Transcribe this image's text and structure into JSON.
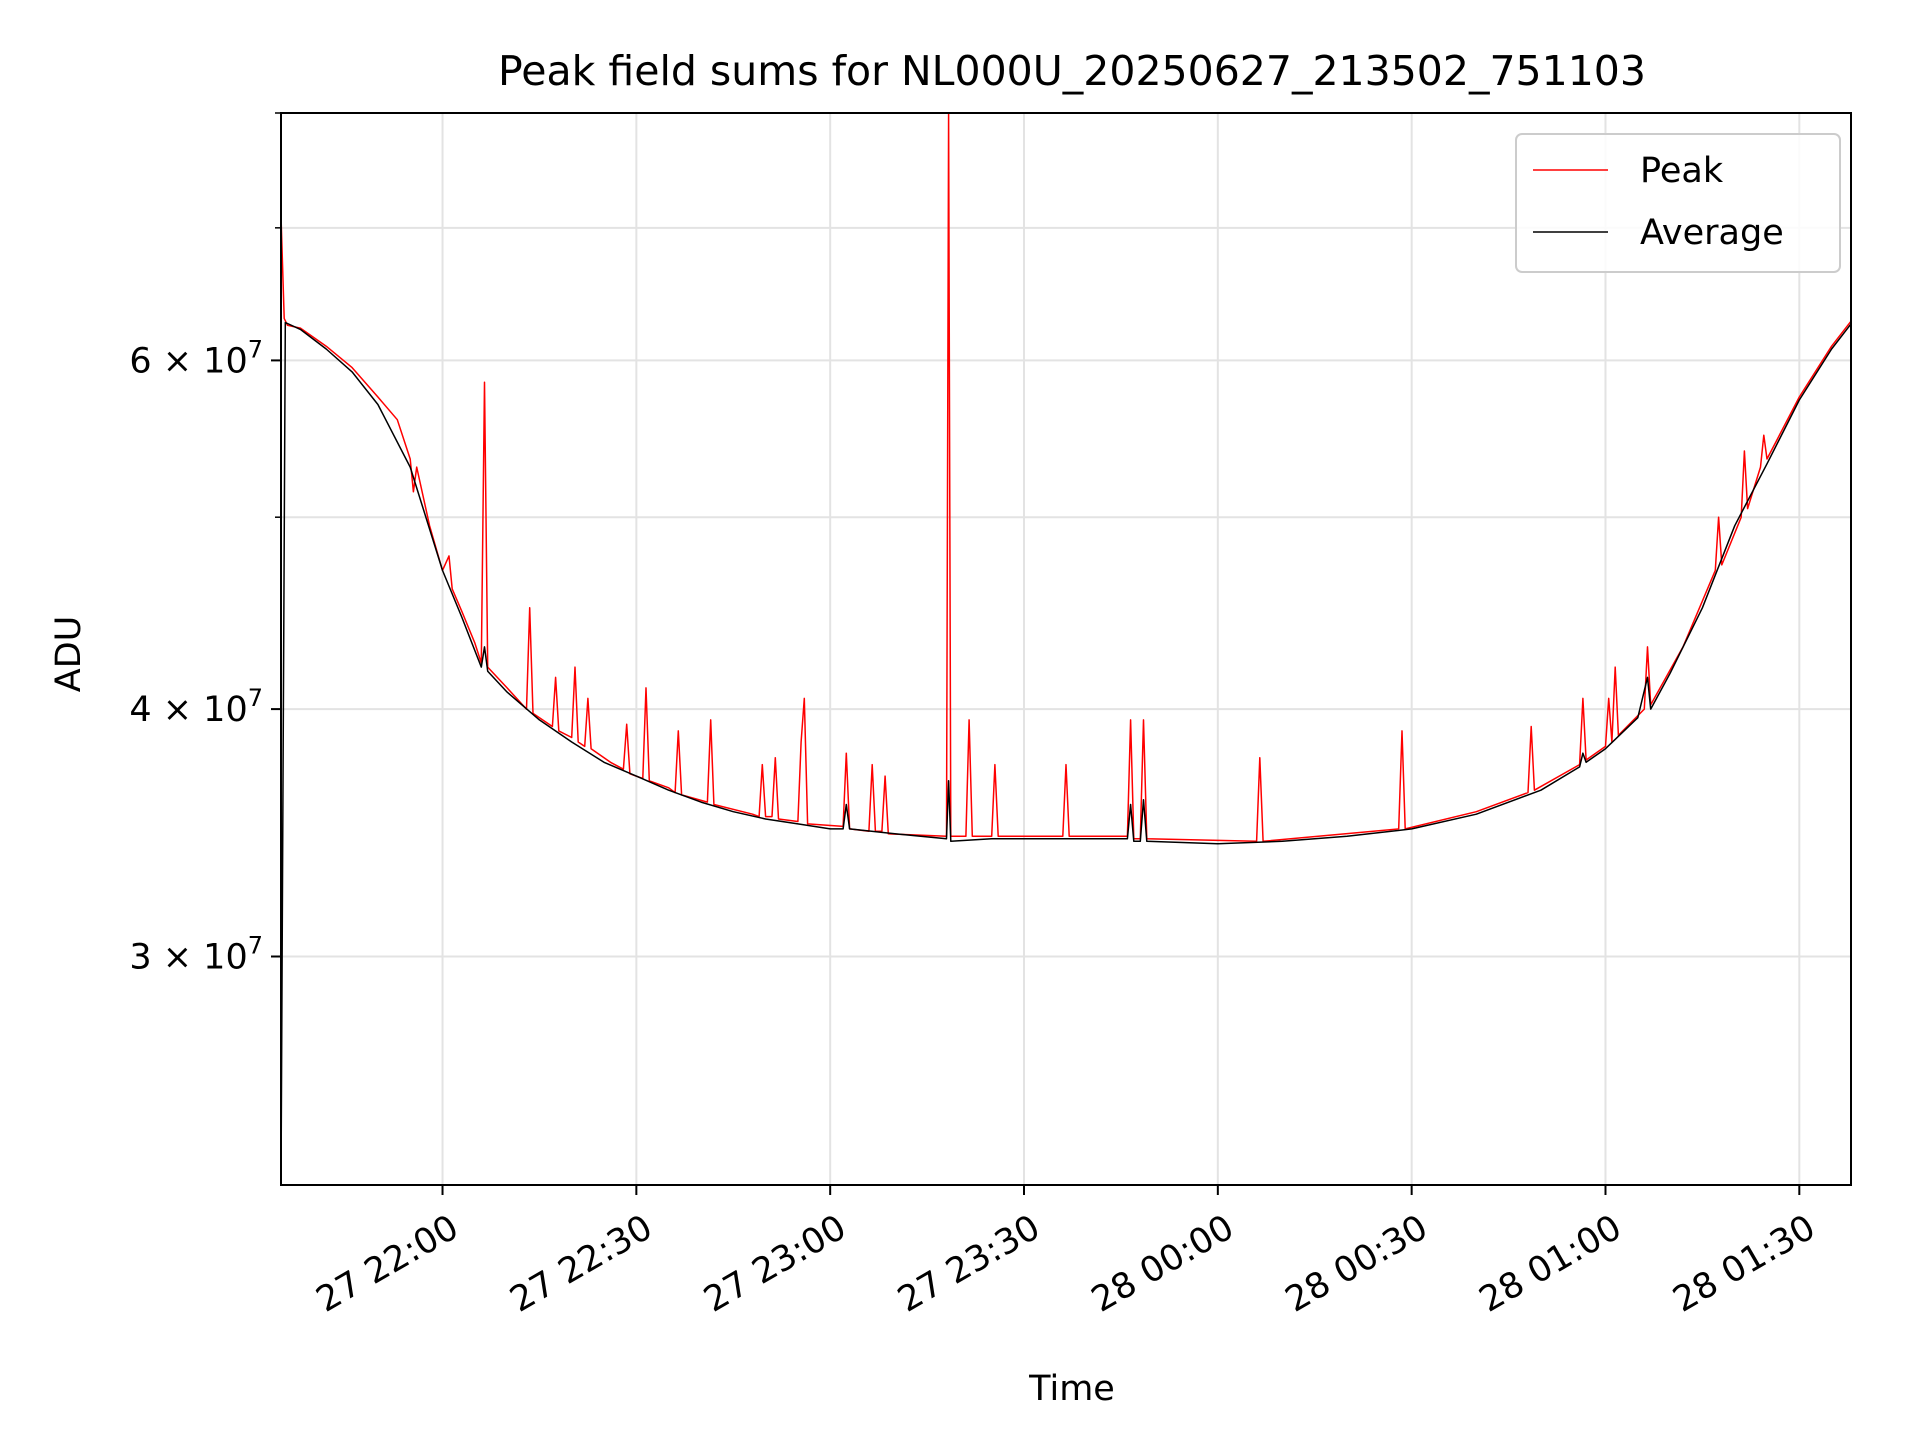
{
  "chart_data": {
    "type": "line",
    "title": "Peak field sums for NL000U_20250627_213502_751103",
    "xlabel": "Time",
    "ylabel": "ADU",
    "y_scale": "log",
    "ylim": [
      23000000,
      80000000
    ],
    "xlim": [
      "2025-06-27 21:35",
      "2025-06-28 01:38"
    ],
    "grid": true,
    "legend_position": "upper right",
    "x_ticks": [
      {
        "t": "2025-06-27 22:00",
        "label": "27 22:00"
      },
      {
        "t": "2025-06-27 22:30",
        "label": "27 22:30"
      },
      {
        "t": "2025-06-27 23:00",
        "label": "27 23:00"
      },
      {
        "t": "2025-06-27 23:30",
        "label": "27 23:30"
      },
      {
        "t": "2025-06-28 00:00",
        "label": "28 00:00"
      },
      {
        "t": "2025-06-28 00:30",
        "label": "28 00:30"
      },
      {
        "t": "2025-06-28 01:00",
        "label": "28 01:00"
      },
      {
        "t": "2025-06-28 01:30",
        "label": "28 01:30"
      }
    ],
    "y_ticks": [
      {
        "value": 30000000,
        "mantissa": "3",
        "base": "10",
        "exp": "7"
      },
      {
        "value": 40000000,
        "mantissa": "4",
        "base": "10",
        "exp": "7"
      },
      {
        "value": 60000000,
        "mantissa": "6",
        "base": "10",
        "exp": "7"
      }
    ],
    "y_minor_ticks": [
      50000000,
      70000000,
      80000000,
      90000000
    ],
    "series": [
      {
        "name": "Peak",
        "color": "#ff0000",
        "points": [
          [
            "2025-06-27 21:35",
            71000000
          ],
          [
            "2025-06-27 21:35:30",
            63000000
          ],
          [
            "2025-06-27 21:36",
            62500000
          ],
          [
            "2025-06-27 21:38",
            62300000
          ],
          [
            "2025-06-27 21:42",
            61000000
          ],
          [
            "2025-06-27 21:46",
            59500000
          ],
          [
            "2025-06-27 21:50",
            57500000
          ],
          [
            "2025-06-27 21:53",
            56000000
          ],
          [
            "2025-06-27 21:55",
            53500000
          ],
          [
            "2025-06-27 21:55:30",
            51500000
          ],
          [
            "2025-06-27 21:56",
            53000000
          ],
          [
            "2025-06-27 21:58",
            49500000
          ],
          [
            "2025-06-27 22:00",
            47000000
          ],
          [
            "2025-06-27 22:01",
            47800000
          ],
          [
            "2025-06-27 22:01:30",
            46000000
          ],
          [
            "2025-06-27 22:03",
            44800000
          ],
          [
            "2025-06-27 22:05",
            43200000
          ],
          [
            "2025-06-27 22:06",
            42200000
          ],
          [
            "2025-06-27 22:06:30",
            58500000
          ],
          [
            "2025-06-27 22:07",
            42000000
          ],
          [
            "2025-06-27 22:10",
            41000000
          ],
          [
            "2025-06-27 22:13",
            40000000
          ],
          [
            "2025-06-27 22:13:30",
            45000000
          ],
          [
            "2025-06-27 22:14",
            39800000
          ],
          [
            "2025-06-27 22:17",
            39200000
          ],
          [
            "2025-06-27 22:17:30",
            41500000
          ],
          [
            "2025-06-27 22:18",
            39000000
          ],
          [
            "2025-06-27 22:20",
            38700000
          ],
          [
            "2025-06-27 22:20:30",
            42000000
          ],
          [
            "2025-06-27 22:21",
            38500000
          ],
          [
            "2025-06-27 22:22",
            38300000
          ],
          [
            "2025-06-27 22:22:30",
            40500000
          ],
          [
            "2025-06-27 22:23",
            38200000
          ],
          [
            "2025-06-27 22:26",
            37600000
          ],
          [
            "2025-06-27 22:28",
            37300000
          ],
          [
            "2025-06-27 22:28:30",
            39300000
          ],
          [
            "2025-06-27 22:29",
            37100000
          ],
          [
            "2025-06-27 22:31",
            36900000
          ],
          [
            "2025-06-27 22:31:30",
            41000000
          ],
          [
            "2025-06-27 22:32",
            36800000
          ],
          [
            "2025-06-27 22:35",
            36500000
          ],
          [
            "2025-06-27 22:36",
            36300000
          ],
          [
            "2025-06-27 22:36:30",
            39000000
          ],
          [
            "2025-06-27 22:37",
            36200000
          ],
          [
            "2025-06-27 22:41",
            35900000
          ],
          [
            "2025-06-27 22:41:30",
            39500000
          ],
          [
            "2025-06-27 22:42",
            35800000
          ],
          [
            "2025-06-27 22:48",
            35400000
          ],
          [
            "2025-06-27 22:49",
            35300000
          ],
          [
            "2025-06-27 22:49:30",
            37500000
          ],
          [
            "2025-06-27 22:50",
            35300000
          ],
          [
            "2025-06-27 22:51",
            35300000
          ],
          [
            "2025-06-27 22:51:30",
            37800000
          ],
          [
            "2025-06-27 22:52",
            35200000
          ],
          [
            "2025-06-27 22:55",
            35100000
          ],
          [
            "2025-06-27 22:55:30",
            38500000
          ],
          [
            "2025-06-27 22:56",
            40500000
          ],
          [
            "2025-06-27 22:56:30",
            35000000
          ],
          [
            "2025-06-27 23:02",
            34900000
          ],
          [
            "2025-06-27 23:02:30",
            38000000
          ],
          [
            "2025-06-27 23:03",
            34800000
          ],
          [
            "2025-06-27 23:06",
            34700000
          ],
          [
            "2025-06-27 23:06:30",
            37500000
          ],
          [
            "2025-06-27 23:07",
            34700000
          ],
          [
            "2025-06-27 23:08",
            34700000
          ],
          [
            "2025-06-27 23:08:30",
            37000000
          ],
          [
            "2025-06-27 23:09",
            34600000
          ],
          [
            "2025-06-27 23:18",
            34500000
          ],
          [
            "2025-06-27 23:18:20",
            80000000
          ],
          [
            "2025-06-27 23:18:40",
            34500000
          ],
          [
            "2025-06-27 23:21",
            34500000
          ],
          [
            "2025-06-27 23:21:30",
            39500000
          ],
          [
            "2025-06-27 23:22",
            34500000
          ],
          [
            "2025-06-27 23:25",
            34500000
          ],
          [
            "2025-06-27 23:25:30",
            37500000
          ],
          [
            "2025-06-27 23:26",
            34500000
          ],
          [
            "2025-06-27 23:36",
            34500000
          ],
          [
            "2025-06-27 23:36:30",
            37500000
          ],
          [
            "2025-06-27 23:37",
            34500000
          ],
          [
            "2025-06-27 23:46",
            34500000
          ],
          [
            "2025-06-27 23:46:30",
            39500000
          ],
          [
            "2025-06-27 23:47",
            34400000
          ],
          [
            "2025-06-27 23:48",
            34400000
          ],
          [
            "2025-06-27 23:48:30",
            39500000
          ],
          [
            "2025-06-27 23:49",
            34400000
          ],
          [
            "2025-06-28 00:06",
            34300000
          ],
          [
            "2025-06-28 00:06:30",
            37800000
          ],
          [
            "2025-06-28 00:07",
            34300000
          ],
          [
            "2025-06-28 00:28",
            34800000
          ],
          [
            "2025-06-28 00:28:30",
            39000000
          ],
          [
            "2025-06-28 00:29",
            34800000
          ],
          [
            "2025-06-28 00:40",
            35500000
          ],
          [
            "2025-06-28 00:48",
            36300000
          ],
          [
            "2025-06-28 00:48:30",
            39200000
          ],
          [
            "2025-06-28 00:49",
            36400000
          ],
          [
            "2025-06-28 00:56",
            37500000
          ],
          [
            "2025-06-28 00:56:30",
            40500000
          ],
          [
            "2025-06-28 00:57",
            37700000
          ],
          [
            "2025-06-28 01:00",
            38300000
          ],
          [
            "2025-06-28 01:00:30",
            40500000
          ],
          [
            "2025-06-28 01:01",
            38500000
          ],
          [
            "2025-06-28 01:01:30",
            42000000
          ],
          [
            "2025-06-28 01:02",
            38800000
          ],
          [
            "2025-06-28 01:06",
            40000000
          ],
          [
            "2025-06-28 01:06:30",
            43000000
          ],
          [
            "2025-06-28 01:07",
            40200000
          ],
          [
            "2025-06-28 01:12",
            43000000
          ],
          [
            "2025-06-28 01:17",
            47000000
          ],
          [
            "2025-06-28 01:17:30",
            50000000
          ],
          [
            "2025-06-28 01:18",
            47300000
          ],
          [
            "2025-06-28 01:21",
            50000000
          ],
          [
            "2025-06-28 01:21:30",
            54000000
          ],
          [
            "2025-06-28 01:22",
            50500000
          ],
          [
            "2025-06-28 01:24",
            53000000
          ],
          [
            "2025-06-28 01:24:30",
            55000000
          ],
          [
            "2025-06-28 01:25",
            53500000
          ],
          [
            "2025-06-28 01:30",
            57500000
          ],
          [
            "2025-06-28 01:35",
            61000000
          ],
          [
            "2025-06-28 01:38",
            62800000
          ]
        ]
      },
      {
        "name": "Average",
        "color": "#000000",
        "points": [
          [
            "2025-06-27 21:35",
            23000000
          ],
          [
            "2025-06-27 21:35:40",
            62700000
          ],
          [
            "2025-06-27 21:38",
            62200000
          ],
          [
            "2025-06-27 21:42",
            60800000
          ],
          [
            "2025-06-27 21:46",
            59200000
          ],
          [
            "2025-06-27 21:50",
            57000000
          ],
          [
            "2025-06-27 21:55",
            53000000
          ],
          [
            "2025-06-27 22:00",
            47000000
          ],
          [
            "2025-06-27 22:03",
            44500000
          ],
          [
            "2025-06-27 22:06",
            42000000
          ],
          [
            "2025-06-27 22:06:30",
            43000000
          ],
          [
            "2025-06-27 22:07",
            41800000
          ],
          [
            "2025-06-27 22:10",
            40800000
          ],
          [
            "2025-06-27 22:15",
            39500000
          ],
          [
            "2025-06-27 22:20",
            38500000
          ],
          [
            "2025-06-27 22:25",
            37600000
          ],
          [
            "2025-06-27 22:30",
            37000000
          ],
          [
            "2025-06-27 22:35",
            36400000
          ],
          [
            "2025-06-27 22:40",
            35900000
          ],
          [
            "2025-06-27 22:45",
            35500000
          ],
          [
            "2025-06-27 22:50",
            35200000
          ],
          [
            "2025-06-27 22:55",
            35000000
          ],
          [
            "2025-06-27 23:00",
            34800000
          ],
          [
            "2025-06-27 23:02",
            34800000
          ],
          [
            "2025-06-27 23:02:30",
            35800000
          ],
          [
            "2025-06-27 23:03",
            34800000
          ],
          [
            "2025-06-27 23:10",
            34600000
          ],
          [
            "2025-06-27 23:18",
            34400000
          ],
          [
            "2025-06-27 23:18:20",
            36800000
          ],
          [
            "2025-06-27 23:18:40",
            34300000
          ],
          [
            "2025-06-27 23:25",
            34400000
          ],
          [
            "2025-06-27 23:30",
            34400000
          ],
          [
            "2025-06-27 23:40",
            34400000
          ],
          [
            "2025-06-27 23:46",
            34400000
          ],
          [
            "2025-06-27 23:46:30",
            35800000
          ],
          [
            "2025-06-27 23:47",
            34300000
          ],
          [
            "2025-06-27 23:48",
            34300000
          ],
          [
            "2025-06-27 23:48:30",
            36000000
          ],
          [
            "2025-06-27 23:49",
            34300000
          ],
          [
            "2025-06-28 00:00",
            34200000
          ],
          [
            "2025-06-28 00:10",
            34300000
          ],
          [
            "2025-06-28 00:20",
            34500000
          ],
          [
            "2025-06-28 00:30",
            34800000
          ],
          [
            "2025-06-28 00:40",
            35400000
          ],
          [
            "2025-06-28 00:50",
            36400000
          ],
          [
            "2025-06-28 00:56",
            37400000
          ],
          [
            "2025-06-28 00:56:30",
            38000000
          ],
          [
            "2025-06-28 00:57",
            37600000
          ],
          [
            "2025-06-28 01:00",
            38200000
          ],
          [
            "2025-06-28 01:05",
            39600000
          ],
          [
            "2025-06-28 01:06:30",
            41500000
          ],
          [
            "2025-06-28 01:07",
            40000000
          ],
          [
            "2025-06-28 01:10",
            41700000
          ],
          [
            "2025-06-28 01:15",
            45000000
          ],
          [
            "2025-06-28 01:20",
            49500000
          ],
          [
            "2025-06-28 01:25",
            53200000
          ],
          [
            "2025-06-28 01:30",
            57300000
          ],
          [
            "2025-06-28 01:35",
            60800000
          ],
          [
            "2025-06-28 01:38",
            62600000
          ]
        ]
      }
    ]
  }
}
